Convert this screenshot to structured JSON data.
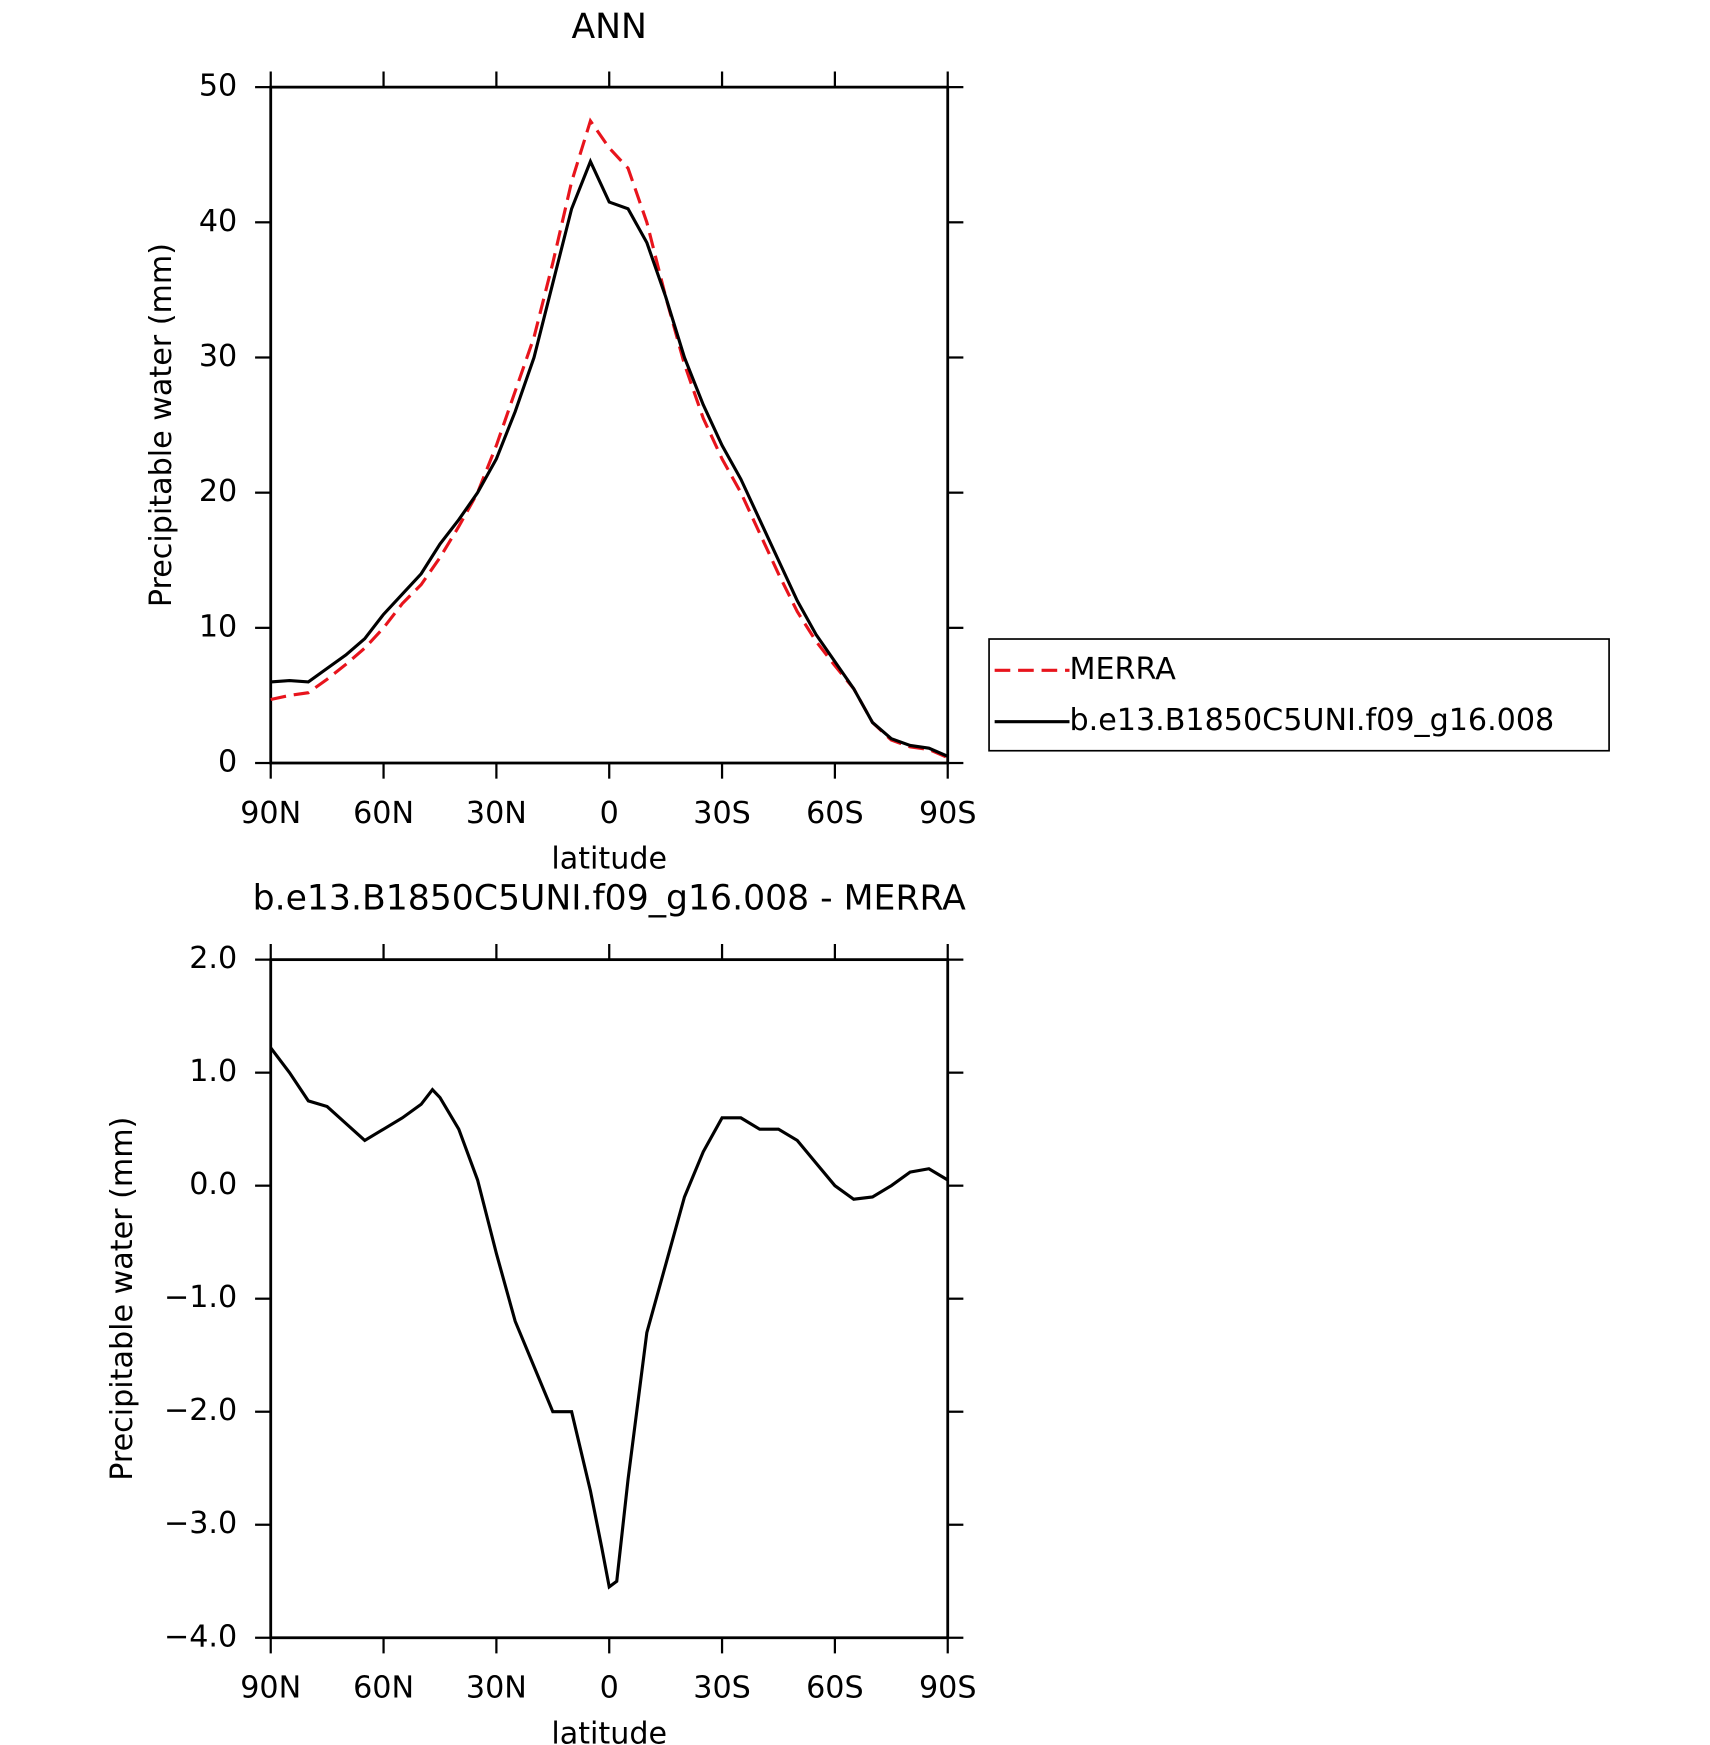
{
  "chart_data": [
    {
      "type": "line",
      "title": "ANN",
      "xlabel": "latitude",
      "ylabel": "Precipitable water (mm)",
      "x": [
        90,
        85,
        80,
        75,
        70,
        65,
        60,
        55,
        50,
        45,
        40,
        35,
        30,
        25,
        20,
        15,
        10,
        5,
        0,
        -5,
        -10,
        -15,
        -20,
        -25,
        -30,
        -35,
        -40,
        -45,
        -50,
        -55,
        -60,
        -65,
        -70,
        -75,
        -80,
        -85,
        -90
      ],
      "xlim": [
        90,
        -90
      ],
      "xticks": [
        {
          "value": 90,
          "label": "90N"
        },
        {
          "value": 60,
          "label": "60N"
        },
        {
          "value": 30,
          "label": "30N"
        },
        0,
        {
          "value": -30,
          "label": "30S"
        },
        {
          "value": -60,
          "label": "60S"
        },
        {
          "value": -90,
          "label": "90S"
        }
      ],
      "ylim": [
        0,
        50
      ],
      "yticks": [
        0,
        10,
        20,
        30,
        40,
        50
      ],
      "legend": "right",
      "series": [
        {
          "name": "MERRA",
          "color": "#e8141c",
          "line_style": "dashed",
          "values": [
            4.7,
            5.0,
            5.2,
            6.2,
            7.3,
            8.5,
            10.0,
            11.8,
            13.2,
            15.2,
            17.5,
            20.0,
            23.5,
            27.5,
            31.5,
            37.0,
            43.0,
            47.5,
            45.5,
            44.0,
            40.0,
            34.5,
            29.5,
            25.5,
            22.5,
            20.0,
            17.0,
            14.0,
            11.2,
            9.0,
            7.2,
            5.5,
            3.0,
            1.7,
            1.2,
            1.0,
            0.4
          ]
        },
        {
          "name": "b.e13.B1850C5UNI.f09_g16.008",
          "color": "#000000",
          "line_style": "solid",
          "values": [
            6.0,
            6.1,
            6.0,
            7.0,
            8.0,
            9.2,
            11.0,
            12.5,
            14.0,
            16.2,
            18.0,
            20.0,
            22.5,
            26.0,
            30.0,
            35.5,
            41.0,
            44.5,
            41.5,
            41.0,
            38.5,
            34.5,
            30.0,
            26.5,
            23.5,
            21.0,
            18.0,
            15.0,
            12.0,
            9.5,
            7.5,
            5.5,
            3.0,
            1.8,
            1.3,
            1.1,
            0.5
          ]
        }
      ]
    },
    {
      "type": "line",
      "title": "b.e13.B1850C5UNI.f09_g16.008 - MERRA",
      "xlabel": "latitude",
      "ylabel": "Precipitable water (mm)",
      "x": [
        90,
        85,
        80,
        75,
        70,
        65,
        60,
        55,
        50,
        47,
        45,
        40,
        35,
        30,
        25,
        20,
        15,
        10,
        5,
        2,
        0,
        -2,
        -5,
        -10,
        -15,
        -20,
        -25,
        -30,
        -35,
        -40,
        -45,
        -50,
        -55,
        -60,
        -65,
        -70,
        -75,
        -80,
        -85,
        -90
      ],
      "xlim": [
        90,
        -90
      ],
      "xticks": [
        {
          "value": 90,
          "label": "90N"
        },
        {
          "value": 60,
          "label": "60N"
        },
        {
          "value": 30,
          "label": "30N"
        },
        0,
        {
          "value": -30,
          "label": "30S"
        },
        {
          "value": -60,
          "label": "60S"
        },
        {
          "value": -90,
          "label": "90S"
        }
      ],
      "ylim": [
        -4,
        2
      ],
      "yticks": [
        {
          "value": -4,
          "label": "−4.0"
        },
        {
          "value": -3,
          "label": "−3.0"
        },
        {
          "value": -2,
          "label": "−2.0"
        },
        {
          "value": -1,
          "label": "−1.0"
        },
        {
          "value": 0,
          "label": "0.0"
        },
        {
          "value": 1,
          "label": "1.0"
        },
        {
          "value": 2,
          "label": "2.0"
        }
      ],
      "series": [
        {
          "color": "#000000",
          "line_style": "solid",
          "values": [
            1.22,
            1.0,
            0.75,
            0.7,
            0.55,
            0.4,
            0.5,
            0.6,
            0.72,
            0.85,
            0.78,
            0.5,
            0.05,
            -0.6,
            -1.2,
            -1.6,
            -2.0,
            -2.0,
            -2.7,
            -3.2,
            -3.55,
            -3.5,
            -2.6,
            -1.3,
            -0.7,
            -0.1,
            0.3,
            0.6,
            0.6,
            0.5,
            0.5,
            0.4,
            0.2,
            0.0,
            -0.12,
            -0.1,
            0.0,
            0.12,
            0.15,
            0.05
          ]
        }
      ]
    }
  ]
}
